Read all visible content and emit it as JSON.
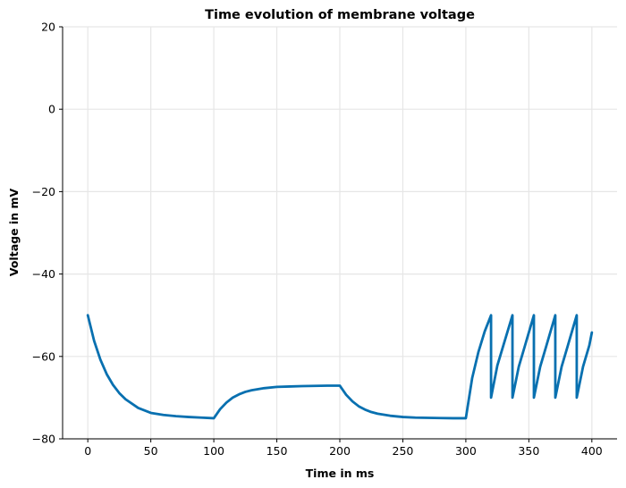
{
  "chart_data": {
    "type": "line",
    "title": "Time evolution of membrane voltage",
    "xlabel": "Time in ms",
    "ylabel": "Voltage in mV",
    "xlim": [
      -20,
      420
    ],
    "ylim": [
      -80,
      20
    ],
    "xticks": [
      0,
      50,
      100,
      150,
      200,
      250,
      300,
      350,
      400
    ],
    "yticks": [
      -80,
      -60,
      -40,
      -20,
      0,
      20
    ],
    "xtick_labels": [
      "0",
      "50",
      "100",
      "150",
      "200",
      "250",
      "300",
      "350",
      "400"
    ],
    "ytick_labels": [
      "−80",
      "−60",
      "−40",
      "−20",
      "0",
      "20"
    ],
    "grid": true,
    "line_color": "#0870b0",
    "grid_color": "#e6e6e6",
    "series": [
      {
        "x": [
          0,
          5,
          10,
          15,
          20,
          25,
          30,
          40,
          50,
          60,
          70,
          80,
          90,
          100,
          105,
          110,
          115,
          120,
          125,
          130,
          140,
          150,
          160,
          170,
          180,
          190,
          200,
          205,
          210,
          215,
          220,
          225,
          230,
          240,
          250,
          260,
          270,
          280,
          290,
          300,
          305,
          310,
          315,
          320,
          320.01,
          325,
          330,
          337,
          337.01,
          342,
          347,
          354,
          354.01,
          359,
          364,
          371,
          371.01,
          376,
          381,
          388,
          388.01,
          393,
          398,
          400
        ],
        "y": [
          -50,
          -56.2,
          -60.8,
          -64.3,
          -66.9,
          -68.9,
          -70.4,
          -72.5,
          -73.7,
          -74.2,
          -74.5,
          -74.7,
          -74.85,
          -75,
          -72.8,
          -71.2,
          -70.0,
          -69.2,
          -68.6,
          -68.2,
          -67.7,
          -67.4,
          -67.3,
          -67.2,
          -67.15,
          -67.1,
          -67.1,
          -69.3,
          -70.9,
          -72.1,
          -72.9,
          -73.5,
          -73.9,
          -74.4,
          -74.7,
          -74.85,
          -74.9,
          -74.95,
          -75,
          -75,
          -65.3,
          -58.9,
          -53.9,
          -50,
          -70,
          -62.2,
          -57.1,
          -50,
          -70,
          -62.5,
          -57.3,
          -50,
          -70,
          -62.5,
          -57.3,
          -50,
          -70,
          -62.5,
          -57.3,
          -50,
          -70,
          -62.5,
          -57.3,
          -54.2
        ]
      }
    ]
  }
}
